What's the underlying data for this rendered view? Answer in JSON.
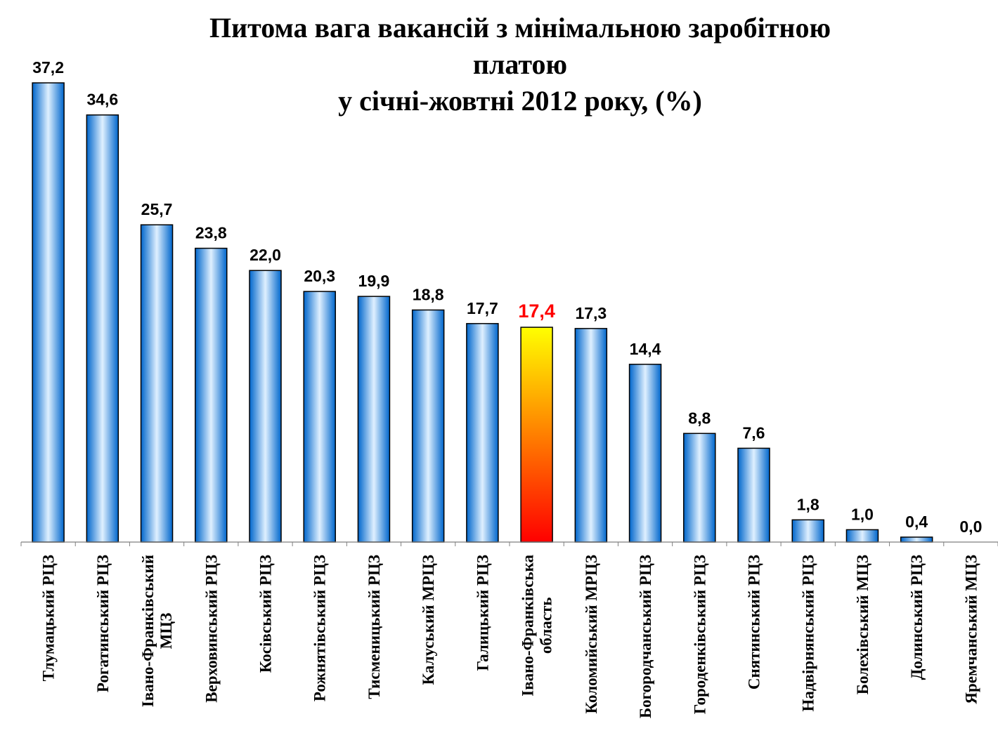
{
  "chart_data": {
    "type": "bar",
    "title": [
      "Питома вага вакансій з мінімальною заробітною платою",
      "у січні-жовтні 2012 року, (%)"
    ],
    "categories": [
      [
        "Тлумацький РЦЗ"
      ],
      [
        "Рогатинський РЦЗ"
      ],
      [
        "Івано-Франківський",
        "МЦЗ"
      ],
      [
        "Верховинський РЦЗ"
      ],
      [
        "Косівський РЦЗ"
      ],
      [
        "Рожнятівський РЦЗ"
      ],
      [
        "Тисменицький РЦЗ"
      ],
      [
        "Калуський МРЦЗ"
      ],
      [
        "Галицький РЦЗ"
      ],
      [
        "Івано-Франківська",
        "область"
      ],
      [
        "Коломийський МРЦЗ"
      ],
      [
        "Богородчанський РЦЗ"
      ],
      [
        "Городенківський РЦЗ"
      ],
      [
        "Снятинський РЦЗ"
      ],
      [
        "Надвірнянський РЦЗ"
      ],
      [
        "Болехівський МЦЗ"
      ],
      [
        "Долинський РЦЗ"
      ],
      [
        "Яремчанський МЦЗ"
      ]
    ],
    "values": [
      37.2,
      34.6,
      25.7,
      23.8,
      22.0,
      20.3,
      19.9,
      18.8,
      17.7,
      17.4,
      17.3,
      14.4,
      8.8,
      7.6,
      1.8,
      1.0,
      0.4,
      0.0
    ],
    "value_labels": [
      "37,2",
      "34,6",
      "25,7",
      "23,8",
      "22,0",
      "20,3",
      "19,9",
      "18,8",
      "17,7",
      "17,4",
      "17,3",
      "14,4",
      "8,8",
      "7,6",
      "1,8",
      "1,0",
      "0,4",
      "0,0"
    ],
    "highlight_index": 9,
    "ylim": [
      0,
      37.2
    ],
    "grid": false,
    "legend": "none",
    "xlabel": "",
    "ylabel": "",
    "colors": {
      "bar_dark": "#0066cc",
      "bar_light": "#dff0ff",
      "highlight_top": "#ffff00",
      "highlight_mid": "#ff8c00",
      "highlight_bottom": "#ff0000",
      "highlight_label": "#ff0000",
      "label": "#000000",
      "axis": "#7f7f7f"
    }
  }
}
